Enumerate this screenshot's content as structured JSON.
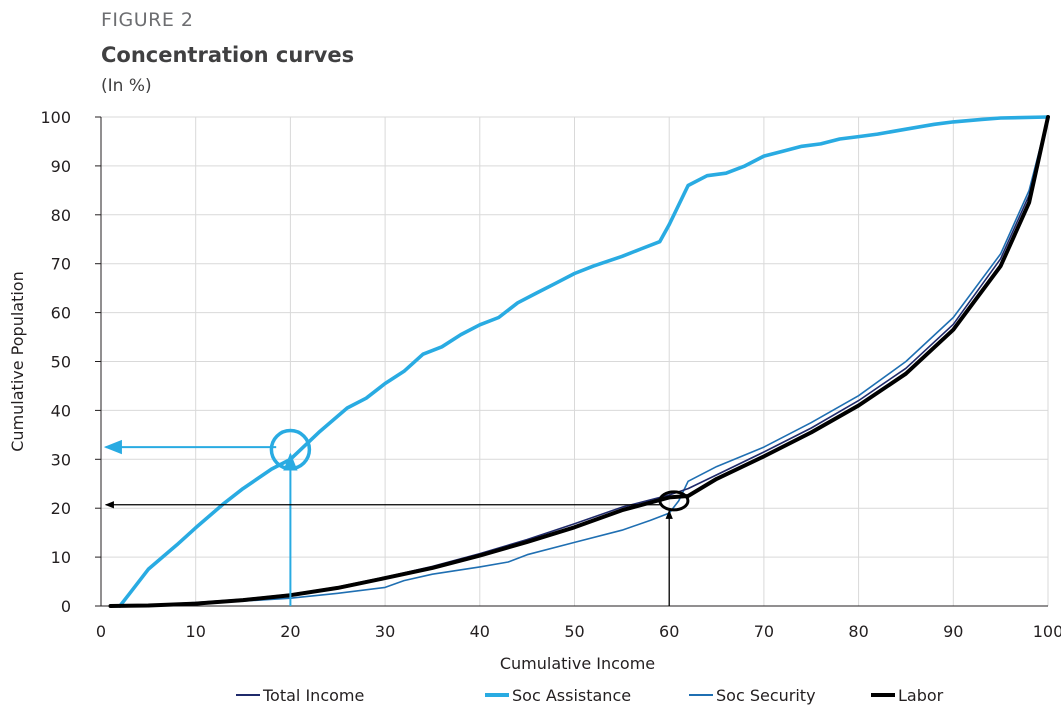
{
  "figure_label": "FIGURE 2",
  "title": "Concentration curves",
  "units": "(In %)",
  "chart_data": {
    "type": "line",
    "title": "Concentration curves",
    "xlabel": "Cumulative Income",
    "ylabel": "Cumulative Population",
    "xlim": [
      0,
      100
    ],
    "ylim": [
      0,
      100
    ],
    "x_ticks": [
      "0",
      "10",
      "20",
      "30",
      "40",
      "50",
      "60",
      "70",
      "80",
      "90",
      "100"
    ],
    "y_ticks": [
      "0",
      "10",
      "20",
      "30",
      "40",
      "50",
      "60",
      "70",
      "80",
      "90",
      "100"
    ],
    "grid": true,
    "legend_position": "bottom",
    "series": [
      {
        "name": "Total Income",
        "color": "#1f2a6b",
        "style": "thin",
        "x": [
          1,
          5,
          10,
          15,
          20,
          25,
          30,
          35,
          40,
          45,
          50,
          55,
          60,
          62,
          65,
          70,
          75,
          80,
          85,
          90,
          95,
          98,
          100
        ],
        "y": [
          0,
          0.2,
          0.7,
          1.4,
          2.4,
          3.9,
          5.9,
          8.1,
          10.7,
          13.6,
          16.8,
          20.2,
          22.7,
          24,
          26.8,
          31.5,
          36.4,
          42,
          48.6,
          57.6,
          71,
          84,
          100
        ]
      },
      {
        "name": "Soc Assistance",
        "color": "#29abe2",
        "style": "thick",
        "x": [
          2,
          3,
          5,
          8,
          10,
          13,
          15,
          18,
          20,
          23,
          26,
          28,
          30,
          32,
          34,
          36,
          38,
          40,
          42,
          44,
          46,
          48,
          50,
          52,
          55,
          57,
          59,
          60,
          62,
          64,
          66,
          68,
          70,
          72,
          74,
          76,
          78,
          80,
          82,
          85,
          88,
          90,
          93,
          95,
          100
        ],
        "y": [
          0,
          2.5,
          7.5,
          12.5,
          16,
          21,
          24,
          28,
          30,
          35.5,
          40.5,
          42.5,
          45.5,
          48,
          51.5,
          53,
          55.5,
          57.5,
          59,
          62,
          64,
          66,
          68,
          69.5,
          71.5,
          73,
          74.5,
          78,
          86,
          88,
          88.5,
          90,
          92,
          93,
          94,
          94.5,
          95.5,
          96,
          96.5,
          97.5,
          98.5,
          99,
          99.5,
          99.8,
          100
        ]
      },
      {
        "name": "Soc Security",
        "color": "#1f6fb2",
        "style": "thin",
        "x": [
          1,
          5,
          10,
          15,
          20,
          25,
          30,
          32,
          35,
          40,
          43,
          45,
          50,
          55,
          58,
          60,
          61,
          62,
          65,
          70,
          75,
          80,
          85,
          90,
          95,
          98,
          100
        ],
        "y": [
          0,
          0.1,
          0.5,
          1,
          1.6,
          2.6,
          3.8,
          5.2,
          6.5,
          8,
          9,
          10.5,
          13,
          15.5,
          17.5,
          19,
          21.5,
          25.5,
          28.5,
          32.5,
          37.5,
          43,
          50,
          59,
          72,
          85,
          100
        ]
      },
      {
        "name": "Labor",
        "color": "#000000",
        "style": "thick",
        "x": [
          1,
          5,
          10,
          15,
          20,
          25,
          30,
          35,
          40,
          45,
          50,
          55,
          60,
          62,
          65,
          70,
          75,
          80,
          85,
          90,
          95,
          98,
          100
        ],
        "y": [
          0,
          0.1,
          0.5,
          1.2,
          2.2,
          3.7,
          5.7,
          7.8,
          10.3,
          13.1,
          16.1,
          19.6,
          22.2,
          22.5,
          26,
          30.6,
          35.5,
          41,
          47.5,
          56.5,
          69.5,
          82.5,
          100
        ]
      }
    ],
    "annotations": [
      {
        "type": "circle",
        "cx": 20,
        "cy": 32,
        "color": "#29abe2",
        "size": "large"
      },
      {
        "type": "arrow",
        "from": [
          20,
          0
        ],
        "to": [
          20,
          31
        ],
        "color": "#29abe2"
      },
      {
        "type": "arrow",
        "from": [
          18.5,
          32.5
        ],
        "to": [
          0.5,
          32.5
        ],
        "color": "#29abe2"
      },
      {
        "type": "circle",
        "cx": 60.5,
        "cy": 21.5,
        "color": "#000000",
        "size": "small"
      },
      {
        "type": "arrow",
        "from": [
          60,
          0
        ],
        "to": [
          60,
          19.5
        ],
        "color": "#000000"
      },
      {
        "type": "arrow",
        "from": [
          59,
          20.7
        ],
        "to": [
          0.5,
          20.7
        ],
        "color": "#000000"
      }
    ]
  }
}
